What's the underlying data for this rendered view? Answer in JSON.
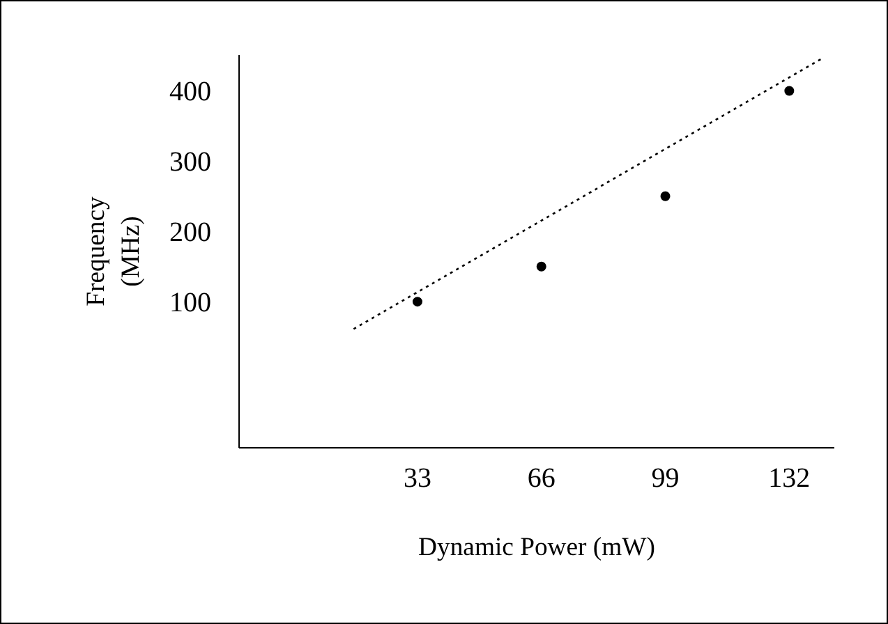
{
  "chart_data": {
    "type": "scatter",
    "xlabel": "Dynamic Power (mW)",
    "ylabel": "Frequency\n(MHz)",
    "xlim": [
      -14.5,
      144
    ],
    "ylim": [
      -108,
      451
    ],
    "xticks": [
      33,
      66,
      99,
      132
    ],
    "yticks": [
      100,
      200,
      300,
      400
    ],
    "grid": false,
    "marker": "circle",
    "series": [
      {
        "color": "#000000",
        "x": [
          33,
          66,
          99,
          132
        ],
        "values": [
          100,
          150,
          250,
          400
        ]
      },
      {
        "type": "line",
        "color": "#000000",
        "line_style": "dotted",
        "marker": "none",
        "x": [
          16,
          141
        ],
        "values": [
          61,
          447
        ]
      }
    ]
  }
}
